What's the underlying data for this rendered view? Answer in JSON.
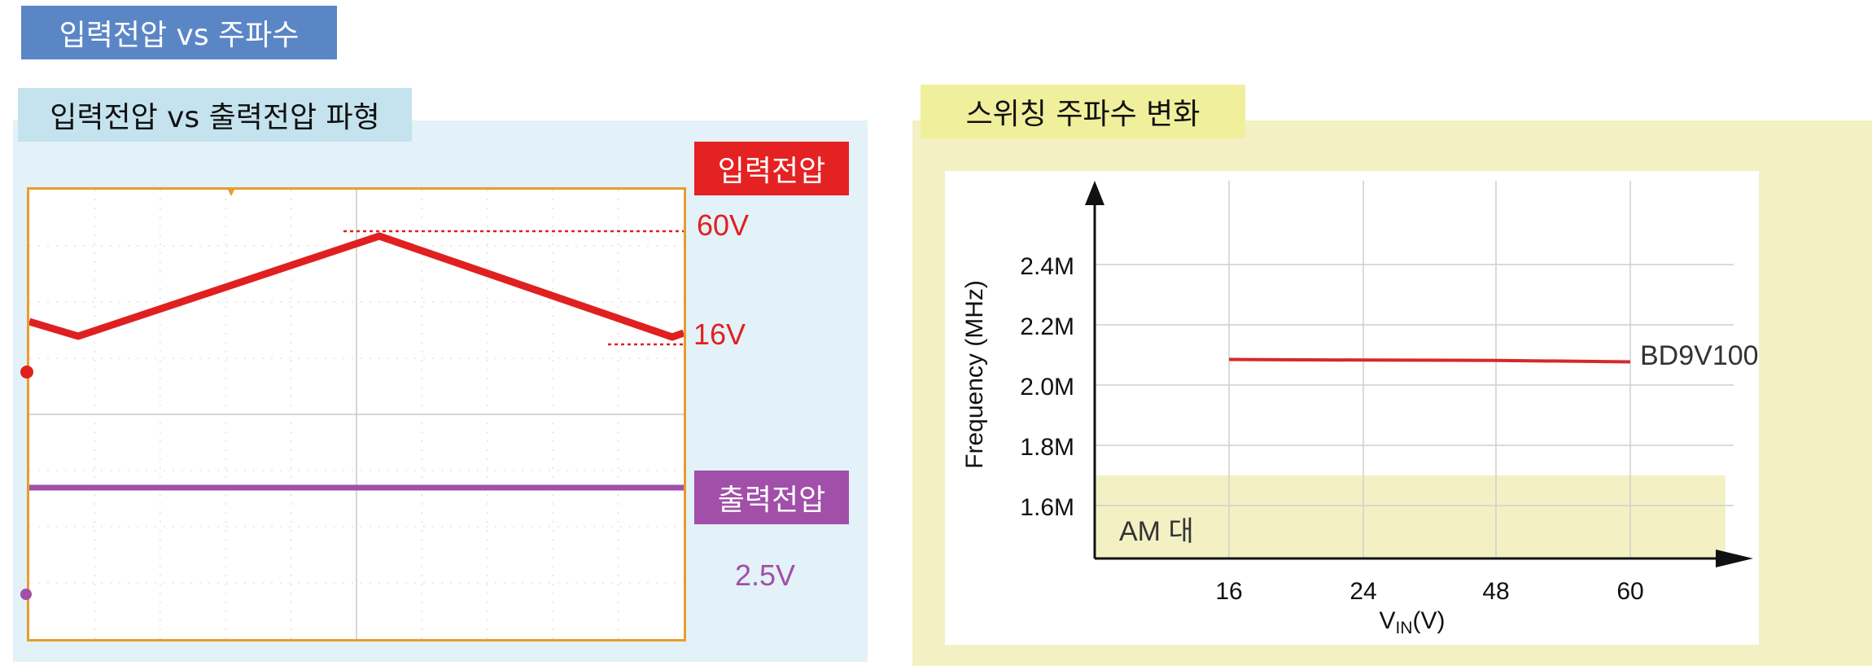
{
  "header": {
    "title": "입력전압 vs 주파수"
  },
  "left": {
    "title": "입력전압 vs 출력전압 파형",
    "input_tag": "입력전압",
    "output_tag": "출력전압",
    "v_high": "60V",
    "v_low": "16V",
    "v_out": "2.5V"
  },
  "right": {
    "title": "스위칭 주파수 변화"
  },
  "colors": {
    "input": "#e02020",
    "output": "#a14fa8",
    "scope_border": "#e79e2c",
    "accent": "#5b86c6"
  },
  "chart_data": {
    "type": "line",
    "title": "",
    "xlabel_main": "V",
    "xlabel_sub": "IN",
    "xlabel_unit": "(V)",
    "ylabel": "Frequency (MHz)",
    "categories": [
      "16",
      "24",
      "48",
      "60"
    ],
    "yticks": [
      "2.4M",
      "2.2M",
      "2.0M",
      "1.8M",
      "1.6M"
    ],
    "ylim": [
      1.4,
      2.6
    ],
    "series": [
      {
        "name": "BD9V100",
        "values": [
          2.085,
          2.083,
          2.082,
          2.077
        ]
      }
    ],
    "band": {
      "label": "AM 대",
      "from": 1.4,
      "to": 1.7
    }
  }
}
